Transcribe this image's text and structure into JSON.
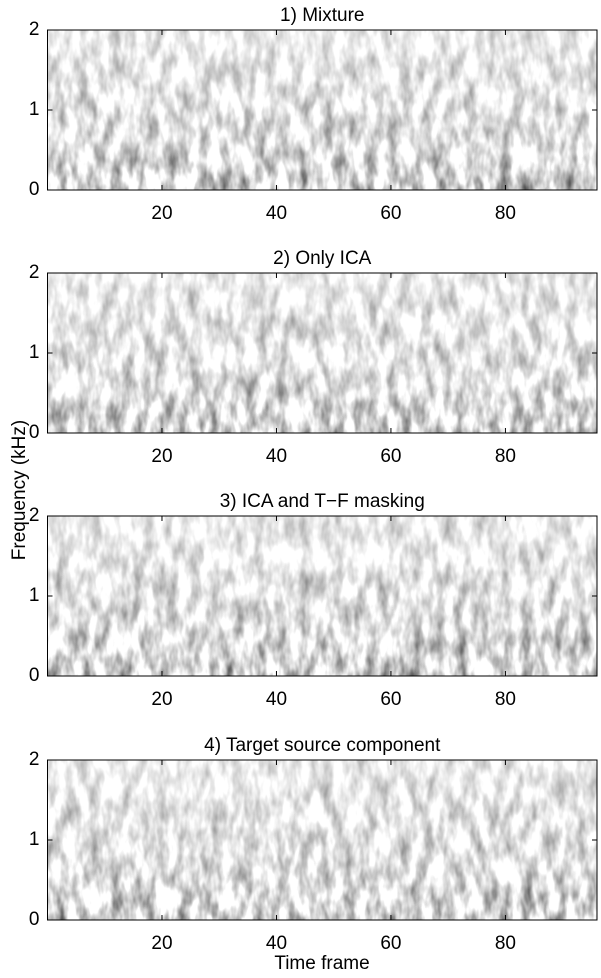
{
  "chart_data": [
    {
      "type": "spectrogram",
      "title": "1) Mixture",
      "xlim": [
        0,
        96
      ],
      "xticks": [
        20,
        40,
        60,
        80
      ],
      "ylim": [
        0,
        2
      ],
      "yticks": [
        0,
        1,
        2
      ]
    },
    {
      "type": "spectrogram",
      "title": "2) Only ICA",
      "xlim": [
        0,
        96
      ],
      "xticks": [
        20,
        40,
        60,
        80
      ],
      "ylim": [
        0,
        2
      ],
      "yticks": [
        0,
        1,
        2
      ]
    },
    {
      "type": "spectrogram",
      "title": "3) ICA and T−F masking",
      "xlim": [
        0,
        96
      ],
      "xticks": [
        20,
        40,
        60,
        80
      ],
      "ylim": [
        0,
        2
      ],
      "yticks": [
        0,
        1,
        2
      ]
    },
    {
      "type": "spectrogram",
      "title": "4) Target source component",
      "xlim": [
        0,
        96
      ],
      "xticks": [
        20,
        40,
        60,
        80
      ],
      "ylim": [
        0,
        2
      ],
      "yticks": [
        0,
        1,
        2
      ]
    }
  ],
  "axis_labels": {
    "x": "Time frame",
    "y": "Frequency (kHz)"
  }
}
